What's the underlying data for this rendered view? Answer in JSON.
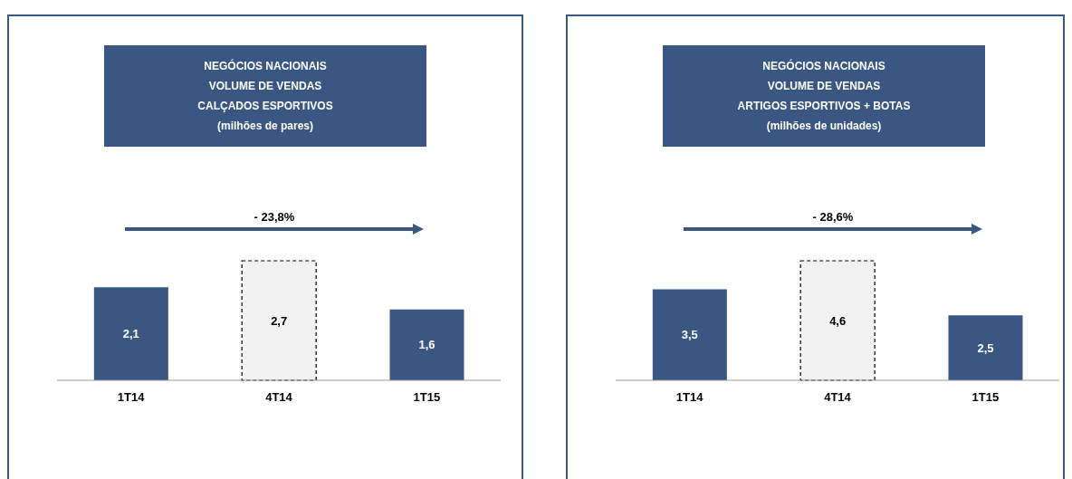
{
  "chart_data": [
    {
      "type": "bar",
      "title": "NEGÓCIOS NACIONAIS\nVOLUME DE VENDAS\nCALÇADOS ESPORTIVOS\n(milhões de pares)",
      "categories": [
        "1T14",
        "4T14",
        "1T15"
      ],
      "values": [
        2.1,
        2.7,
        1.6
      ],
      "value_labels": [
        "2,1",
        "2,7",
        "1,6"
      ],
      "colors": [
        "#3a5683",
        "#f2f2f2",
        "#3a5683"
      ],
      "annotations": [
        "- 23,8%"
      ]
    },
    {
      "type": "bar",
      "title": "NEGÓCIOS NACIONAIS\nVOLUME DE VENDAS\nARTIGOS ESPORTIVOS  +  BOTAS\n(milhões de  unidades)",
      "categories": [
        "1T14",
        "4T14",
        "1T15"
      ],
      "values": [
        3.5,
        4.6,
        2.5
      ],
      "value_labels": [
        "3,5",
        "4,6",
        "2,5"
      ],
      "colors": [
        "#3a5683",
        "#f2f2f2",
        "#3a5683"
      ],
      "annotations": [
        "- 28,6%"
      ]
    }
  ]
}
